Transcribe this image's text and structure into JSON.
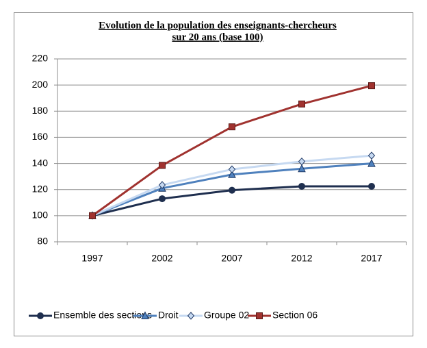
{
  "chart_data": {
    "type": "line",
    "title": [
      "Evolution de la population des enseignants-chercheurs",
      "sur 20 ans (base 100)"
    ],
    "categories": [
      "1997",
      "2002",
      "2007",
      "2012",
      "2017"
    ],
    "ylim": [
      80,
      220
    ],
    "yticks": [
      80,
      100,
      120,
      140,
      160,
      180,
      200,
      220
    ],
    "grid": true,
    "legend": "bottom",
    "series": [
      {
        "name": "Ensemble des sections",
        "color": "#1f2f4f",
        "marker": "circle",
        "values": [
          100,
          113,
          119.5,
          122.5,
          122.5
        ]
      },
      {
        "name": "Droit",
        "color": "#4f81bd",
        "marker": "triangle",
        "values": [
          100,
          121,
          131.5,
          136,
          140
        ]
      },
      {
        "name": "Groupe 02",
        "color": "#c6d9f1",
        "marker": "diamond",
        "values": [
          100,
          123.5,
          135.5,
          141.5,
          146
        ]
      },
      {
        "name": "Section 06",
        "color": "#a0322f",
        "marker": "square",
        "values": [
          100,
          138.5,
          168,
          185.5,
          199.5
        ]
      }
    ]
  }
}
